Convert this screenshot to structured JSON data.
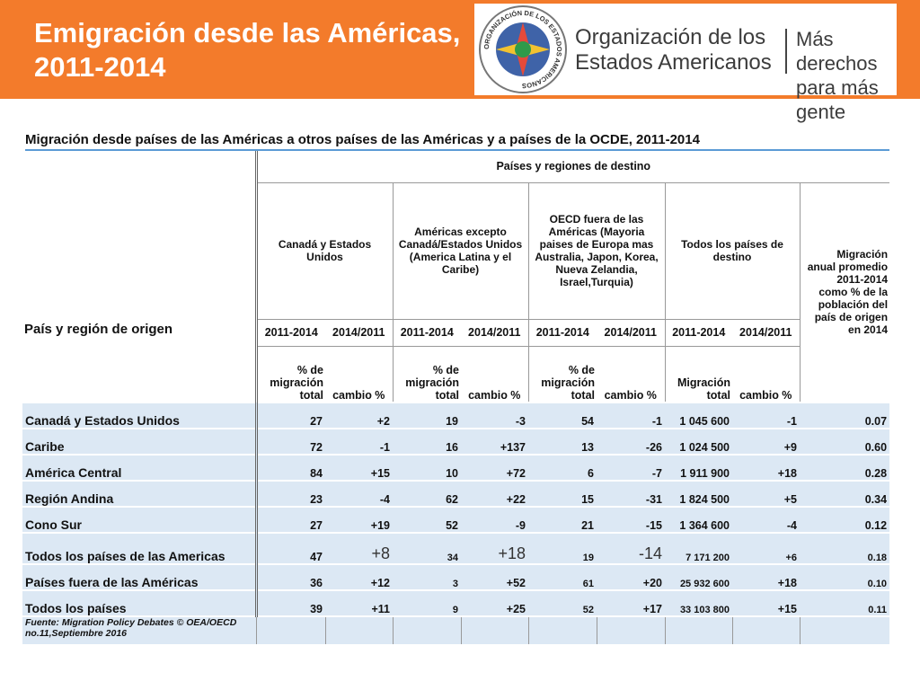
{
  "header": {
    "title_lines": [
      "Emigración desde las Américas,",
      "2011-2014"
    ],
    "seal_text": "ORGANIZACIÓN DE LOS ESTADOS AMERICANOS",
    "org_lines": [
      "Organización de los",
      "Estados Americanos"
    ],
    "slogan_lines": [
      "Más derechos",
      "para más gente"
    ]
  },
  "table": {
    "caption": "Migración desde países de las Américas a otros países de las Américas y a países de la OCDE, 2011-2014",
    "origin_label": "País y región de origen",
    "destination_label": "Países y regiones de destino",
    "groups": [
      "Canadá y Estados Unidos",
      "Américas excepto Canadá/Estados Unidos (America Latina y el Caribe)",
      "OECD fuera de las Américas (Mayoria paises de Europa mas Australia, Japon, Korea, Nueva Zelandia, Israel,Turquia)",
      "Todos los países de destino"
    ],
    "last_column": "Migración anual promedio 2011-2014 como % de la población del país de origen en 2014",
    "periods": [
      "2011-2014",
      "2014/2011",
      "2011-2014",
      "2014/2011",
      "2011-2014",
      "2014/2011",
      "2011-2014",
      "2014/2011"
    ],
    "units": [
      "% de migración total",
      "cambio %",
      "% de migración total",
      "cambio %",
      "% de migración total",
      "cambio %",
      "Migración total",
      "cambio %"
    ],
    "rows": [
      [
        "Canadá y Estados Unidos",
        "27",
        "+2",
        "19",
        "-3",
        "54",
        "-1",
        "1 045 600",
        "-1",
        "0.07"
      ],
      [
        "Caribe",
        "72",
        "-1",
        "16",
        "+137",
        "13",
        "-26",
        "1 024 500",
        "+9",
        "0.60"
      ],
      [
        "América Central",
        "84",
        "+15",
        "10",
        "+72",
        "6",
        "-7",
        "1 911 900",
        "+18",
        "0.28"
      ],
      [
        "Región Andina",
        "23",
        "-4",
        "62",
        "+22",
        "15",
        "-31",
        "1 824 500",
        "+5",
        "0.34"
      ],
      [
        "Cono Sur",
        "27",
        "+19",
        "52",
        "-9",
        "21",
        "-15",
        "1 364 600",
        "-4",
        "0.12"
      ],
      [
        "Todos los países de las Americas",
        "47",
        "+8",
        "34",
        "+18",
        "19",
        "-14",
        "7 171 200",
        "+6",
        "0.18"
      ],
      [
        "Países fuera de las Américas",
        "36",
        "+12",
        "3",
        "+52",
        "61",
        "+20",
        "25 932 600",
        "+18",
        "0.10"
      ],
      [
        "Todos los países",
        "39",
        "+11",
        "9",
        "+25",
        "52",
        "+17",
        "33 103 800",
        "+15",
        "0.11"
      ]
    ],
    "source": "Fuente: Migration Policy Debates © OEA/OECD no.11,Septiembre 2016"
  }
}
